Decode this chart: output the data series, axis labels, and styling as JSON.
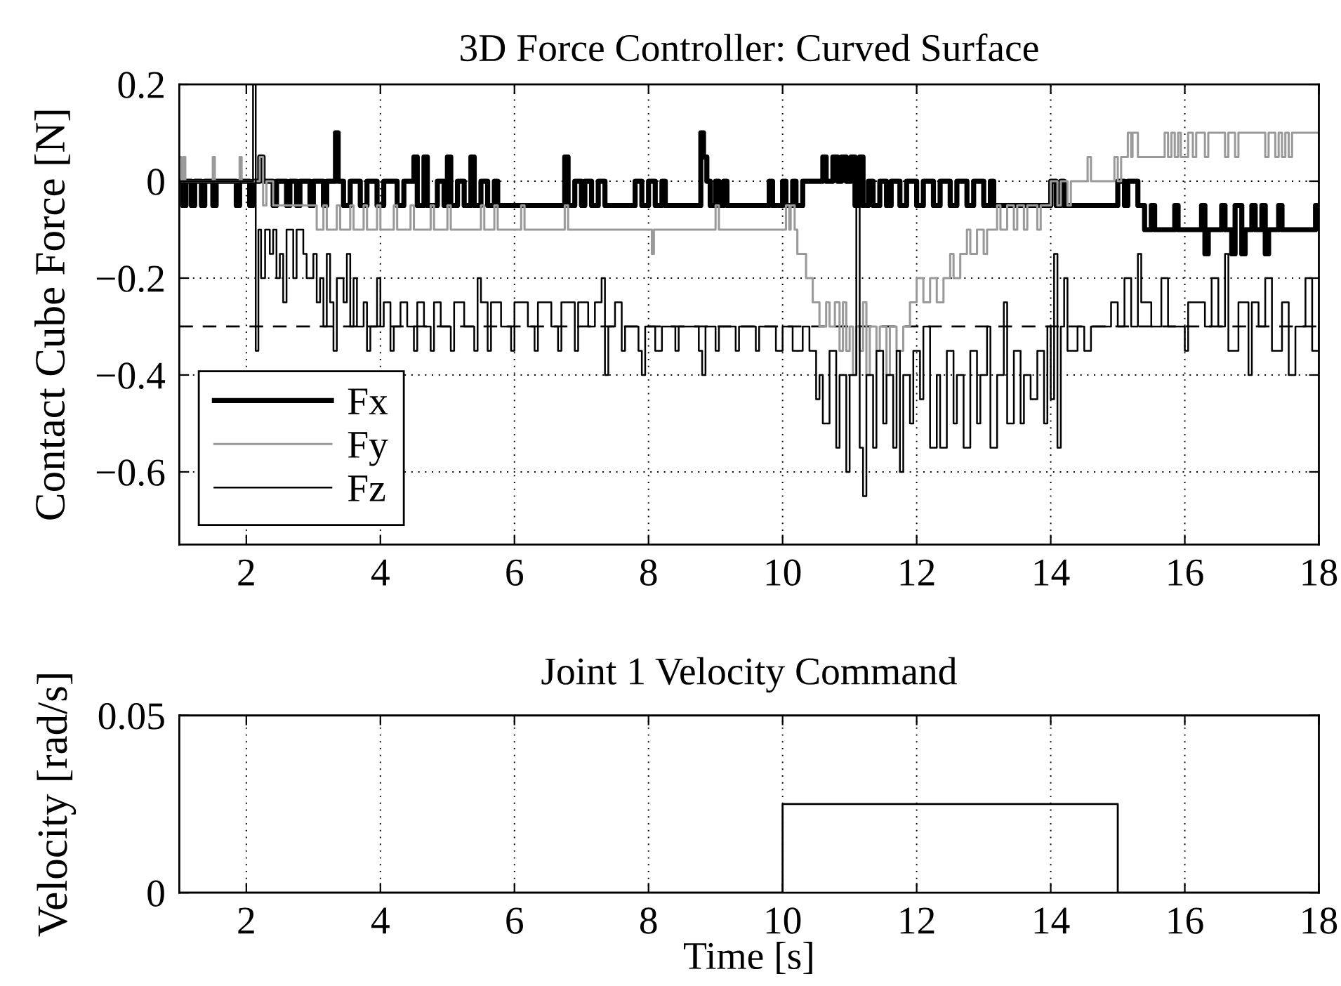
{
  "chart_data": [
    {
      "type": "step",
      "title": "3D Force Controller: Curved Surface",
      "ylabel": "Contact Cube Force [N]",
      "xlim": [
        1,
        18
      ],
      "xticks": [
        2,
        4,
        6,
        8,
        10,
        12,
        14,
        16,
        18
      ],
      "ylim": [
        -0.75,
        0.2
      ],
      "yticks": [
        0.2,
        0,
        {
          "value": -0.2,
          "label": "−0.2"
        },
        {
          "value": -0.4,
          "label": "−0.4"
        },
        {
          "value": -0.6,
          "label": "−0.6"
        }
      ],
      "grid": true,
      "legend": "bottom left",
      "ref_lines": [
        {
          "axis": "y",
          "value": -0.3,
          "color": "#000000",
          "line_style": "dashed"
        }
      ],
      "series": [
        {
          "name": "Fx",
          "color": "#000000",
          "x": [
            1.0,
            1.05,
            1.1,
            1.18,
            1.23,
            1.33,
            1.38,
            1.5,
            1.55,
            1.85,
            1.9,
            2.05,
            2.1,
            2.2,
            2.25,
            2.4,
            2.45,
            2.6,
            2.65,
            2.75,
            2.8,
            2.95,
            3.0,
            3.15,
            3.2,
            3.33,
            3.37,
            3.45,
            3.55,
            3.7,
            3.8,
            3.95,
            4.05,
            4.25,
            4.35,
            4.5,
            4.55,
            4.65,
            4.7,
            4.85,
            4.95,
            5.0,
            5.05,
            5.15,
            5.25,
            5.35,
            5.4,
            5.5,
            5.6,
            5.7,
            5.75,
            6.75,
            6.8,
            6.9,
            7.0,
            7.05,
            7.15,
            7.25,
            7.35,
            7.8,
            7.9,
            8.0,
            8.1,
            8.2,
            8.25,
            8.78,
            8.82,
            8.87,
            8.92,
            9.0,
            9.05,
            9.12,
            9.17,
            9.8,
            9.85,
            10.0,
            10.05,
            10.15,
            10.2,
            10.3,
            10.6,
            10.65,
            10.75,
            10.82,
            10.88,
            10.95,
            11.02,
            11.08,
            11.15,
            11.2,
            11.28,
            11.35,
            11.45,
            11.55,
            11.62,
            11.75,
            11.85,
            12.0,
            12.1,
            12.25,
            12.35,
            12.5,
            12.6,
            12.75,
            12.85,
            13.0,
            13.1,
            13.15,
            14.0,
            14.08,
            14.15,
            14.2,
            15.0,
            15.1,
            15.15,
            15.3,
            15.4,
            15.5,
            15.55,
            15.85,
            15.9,
            16.25,
            16.3,
            16.35,
            16.55,
            16.6,
            16.7,
            16.75,
            16.85,
            16.9,
            17.0,
            17.05,
            17.15,
            17.2,
            17.25,
            17.4,
            17.45,
            17.95,
            18.0
          ],
          "values": [
            0,
            -0.05,
            0,
            -0.05,
            0,
            -0.05,
            0,
            -0.05,
            0,
            -0.05,
            0,
            -0.05,
            0,
            0.05,
            0,
            -0.05,
            0,
            -0.05,
            0,
            -0.05,
            0,
            -0.05,
            0,
            -0.05,
            0,
            0.1,
            0,
            -0.05,
            0,
            -0.05,
            0,
            -0.05,
            0,
            -0.05,
            0,
            0.05,
            -0.05,
            0.05,
            -0.05,
            0,
            -0.05,
            0.05,
            -0.05,
            0,
            -0.05,
            0.05,
            -0.05,
            0,
            -0.05,
            0,
            -0.05,
            0.05,
            -0.05,
            0,
            -0.05,
            0,
            -0.05,
            0,
            -0.05,
            0,
            -0.05,
            0,
            -0.05,
            0,
            -0.05,
            0.1,
            0.05,
            0,
            -0.05,
            0,
            -0.05,
            0,
            -0.05,
            0,
            -0.05,
            0,
            -0.05,
            0,
            -0.05,
            0,
            0.05,
            0,
            0.05,
            0,
            0.05,
            0,
            0.05,
            -0.05,
            0.05,
            -0.05,
            0,
            -0.05,
            0,
            -0.05,
            0,
            -0.05,
            0,
            -0.05,
            0,
            -0.05,
            0,
            -0.05,
            0,
            -0.05,
            0,
            -0.05,
            0,
            -0.05,
            0,
            -0.05,
            0,
            -0.05,
            0,
            -0.05,
            0,
            -0.05,
            -0.1,
            -0.05,
            -0.1,
            -0.05,
            -0.1,
            -0.05,
            -0.15,
            -0.1,
            -0.05,
            -0.1,
            -0.15,
            -0.05,
            -0.15,
            -0.1,
            -0.05,
            -0.1,
            -0.05,
            -0.15,
            -0.1,
            -0.05,
            -0.1,
            -0.05,
            -0.1
          ]
        },
        {
          "name": "Fy",
          "color": "#9a9a9a",
          "x": [
            1.0,
            1.03,
            1.06,
            1.09,
            1.5,
            1.53,
            1.9,
            1.93,
            2.2,
            2.25,
            2.3,
            2.4,
            3.05,
            3.15,
            3.2,
            3.35,
            3.4,
            3.55,
            3.6,
            3.75,
            3.8,
            3.95,
            4.0,
            4.2,
            4.25,
            4.45,
            4.5,
            4.75,
            4.8,
            5.0,
            5.05,
            5.5,
            5.55,
            5.7,
            5.75,
            6.1,
            6.15,
            6.75,
            6.8,
            8.05,
            8.08,
            9.0,
            9.05,
            10.05,
            10.1,
            10.12,
            10.18,
            10.22,
            10.35,
            10.45,
            10.55,
            10.65,
            10.7,
            10.78,
            10.85,
            10.9,
            10.95,
            11.0,
            11.05,
            11.1,
            11.15,
            11.2,
            11.25,
            11.3,
            11.4,
            11.45,
            11.55,
            11.6,
            11.7,
            11.8,
            11.9,
            12.0,
            12.1,
            12.2,
            12.3,
            12.4,
            12.5,
            12.55,
            12.65,
            12.75,
            12.8,
            12.9,
            13.0,
            13.05,
            13.2,
            13.25,
            13.35,
            13.45,
            13.5,
            13.6,
            13.65,
            13.8,
            13.85,
            14.0,
            14.1,
            14.15,
            14.25,
            14.3,
            14.55,
            14.6,
            14.95,
            15.0,
            15.05,
            15.15,
            15.2,
            15.22,
            15.3,
            15.7,
            15.75,
            15.8,
            15.85,
            15.9,
            15.94,
            16.05,
            16.12,
            16.17,
            16.3,
            16.35,
            16.6,
            16.65,
            16.75,
            16.8,
            17.2,
            17.25,
            17.35,
            17.4,
            17.45,
            17.5,
            17.55,
            17.6,
            18.0
          ],
          "values": [
            0.05,
            0,
            0.05,
            0,
            0.05,
            0,
            0.05,
            0,
            0.05,
            -0.05,
            0,
            -0.05,
            -0.1,
            -0.05,
            -0.1,
            -0.05,
            -0.1,
            -0.05,
            -0.1,
            -0.05,
            -0.1,
            -0.05,
            -0.1,
            -0.05,
            -0.1,
            -0.05,
            -0.1,
            -0.05,
            -0.1,
            -0.05,
            -0.1,
            -0.05,
            -0.1,
            -0.05,
            -0.1,
            -0.05,
            -0.1,
            -0.05,
            -0.1,
            -0.15,
            -0.1,
            -0.05,
            -0.1,
            -0.05,
            -0.1,
            -0.05,
            -0.1,
            -0.15,
            -0.2,
            -0.25,
            -0.3,
            -0.25,
            -0.3,
            -0.25,
            -0.35,
            -0.25,
            -0.35,
            -0.3,
            -0.4,
            -0.3,
            -0.35,
            -0.25,
            -0.4,
            -0.3,
            -0.35,
            -0.3,
            -0.4,
            -0.3,
            -0.35,
            -0.3,
            -0.25,
            -0.2,
            -0.25,
            -0.2,
            -0.25,
            -0.2,
            -0.15,
            -0.2,
            -0.15,
            -0.1,
            -0.15,
            -0.1,
            -0.15,
            -0.1,
            -0.05,
            -0.1,
            -0.05,
            -0.1,
            -0.05,
            -0.1,
            -0.05,
            -0.1,
            -0.05,
            0,
            -0.05,
            0,
            -0.05,
            0,
            0.05,
            0,
            0.05,
            0,
            0.05,
            0.1,
            0.05,
            0.1,
            0.05,
            0.1,
            0.05,
            0.1,
            0.05,
            0.1,
            0.05,
            0.1,
            0.05,
            0.1,
            0.05,
            0.1,
            0.05,
            0.1,
            0.05,
            0.1,
            0.05,
            0.1,
            0.05,
            0.1,
            0.05,
            0.1,
            0.05,
            0.1,
            0.1
          ]
        },
        {
          "name": "Fz",
          "color": "#000000",
          "x": [
            1.0,
            2.1,
            2.14,
            2.18,
            2.22,
            2.28,
            2.35,
            2.4,
            2.45,
            2.5,
            2.55,
            2.6,
            2.7,
            2.75,
            2.85,
            2.9,
            3.0,
            3.05,
            3.1,
            3.15,
            3.2,
            3.25,
            3.3,
            3.35,
            3.45,
            3.5,
            3.55,
            3.6,
            3.65,
            3.75,
            3.8,
            3.85,
            3.95,
            4.0,
            4.05,
            4.15,
            4.2,
            4.3,
            4.4,
            4.5,
            4.55,
            4.65,
            4.75,
            4.8,
            4.9,
            5.05,
            5.1,
            5.25,
            5.4,
            5.45,
            5.5,
            5.6,
            5.65,
            5.8,
            5.95,
            6.0,
            6.2,
            6.3,
            6.35,
            6.55,
            6.65,
            6.7,
            6.9,
            6.95,
            7.1,
            7.2,
            7.3,
            7.35,
            7.4,
            7.5,
            7.6,
            7.65,
            7.85,
            7.9,
            7.95,
            8.1,
            8.2,
            8.4,
            8.45,
            8.75,
            8.8,
            8.85,
            9.0,
            9.05,
            9.3,
            9.35,
            9.6,
            9.65,
            9.9,
            10.0,
            10.15,
            10.3,
            10.4,
            10.5,
            10.55,
            10.6,
            10.7,
            10.8,
            10.85,
            10.95,
            11.0,
            11.1,
            11.15,
            11.2,
            11.25,
            11.35,
            11.4,
            11.5,
            11.55,
            11.65,
            11.7,
            11.75,
            11.8,
            11.9,
            11.95,
            12.05,
            12.1,
            12.2,
            12.3,
            12.35,
            12.45,
            12.55,
            12.6,
            12.7,
            12.8,
            12.9,
            12.95,
            13.05,
            13.1,
            13.2,
            13.3,
            13.35,
            13.45,
            13.55,
            13.6,
            13.7,
            13.8,
            13.9,
            13.95,
            14.0,
            14.05,
            14.1,
            14.15,
            14.2,
            14.25,
            14.4,
            14.5,
            14.6,
            14.9,
            15.0,
            15.1,
            15.2,
            15.3,
            15.35,
            15.5,
            15.65,
            15.75,
            16.0,
            16.05,
            16.3,
            16.4,
            16.5,
            16.6,
            16.65,
            16.8,
            16.95,
            17.0,
            17.1,
            17.2,
            17.3,
            17.45,
            17.55,
            17.65,
            17.8,
            17.9,
            18.0
          ],
          "values": [
            0,
            0.2,
            -0.35,
            -0.1,
            -0.2,
            -0.1,
            -0.15,
            -0.1,
            -0.2,
            -0.15,
            -0.25,
            -0.1,
            -0.2,
            -0.1,
            -0.15,
            -0.2,
            -0.15,
            -0.25,
            -0.2,
            -0.3,
            -0.15,
            -0.25,
            -0.35,
            -0.2,
            -0.25,
            -0.15,
            -0.3,
            -0.2,
            -0.3,
            -0.25,
            -0.35,
            -0.3,
            -0.2,
            -0.3,
            -0.25,
            -0.35,
            -0.3,
            -0.25,
            -0.3,
            -0.35,
            -0.25,
            -0.3,
            -0.35,
            -0.25,
            -0.3,
            -0.35,
            -0.25,
            -0.3,
            -0.35,
            -0.2,
            -0.25,
            -0.35,
            -0.25,
            -0.3,
            -0.35,
            -0.25,
            -0.3,
            -0.35,
            -0.25,
            -0.3,
            -0.35,
            -0.25,
            -0.35,
            -0.25,
            -0.3,
            -0.25,
            -0.2,
            -0.4,
            -0.3,
            -0.25,
            -0.35,
            -0.3,
            -0.35,
            -0.4,
            -0.3,
            -0.35,
            -0.3,
            -0.35,
            -0.3,
            -0.35,
            -0.4,
            -0.3,
            -0.35,
            -0.3,
            -0.35,
            -0.3,
            -0.35,
            -0.3,
            -0.35,
            -0.3,
            -0.35,
            -0.3,
            -0.35,
            -0.45,
            -0.4,
            -0.5,
            -0.35,
            -0.55,
            -0.4,
            -0.6,
            -0.4,
            -0.05,
            -0.55,
            -0.65,
            -0.4,
            -0.55,
            -0.35,
            -0.5,
            -0.4,
            -0.55,
            -0.35,
            -0.6,
            -0.4,
            -0.5,
            -0.35,
            -0.45,
            -0.3,
            -0.55,
            -0.4,
            -0.55,
            -0.35,
            -0.5,
            -0.4,
            -0.55,
            -0.35,
            -0.5,
            -0.4,
            -0.3,
            -0.55,
            -0.4,
            -0.25,
            -0.5,
            -0.35,
            -0.5,
            -0.4,
            -0.45,
            -0.35,
            -0.5,
            -0.3,
            -0.45,
            -0.15,
            -0.55,
            -0.3,
            -0.2,
            -0.35,
            -0.3,
            -0.35,
            -0.3,
            -0.25,
            -0.3,
            -0.2,
            -0.3,
            -0.15,
            -0.25,
            -0.3,
            -0.2,
            -0.3,
            -0.35,
            -0.25,
            -0.3,
            -0.2,
            -0.3,
            -0.15,
            -0.35,
            -0.25,
            -0.4,
            -0.25,
            -0.3,
            -0.2,
            -0.35,
            -0.25,
            -0.4,
            -0.3,
            -0.2,
            -0.35,
            -0.3
          ]
        }
      ]
    },
    {
      "type": "step",
      "title": "Joint 1 Velocity Command",
      "xlabel": "Time [s]",
      "ylabel": "Velocity [rad/s]",
      "xlim": [
        1,
        18
      ],
      "xticks": [
        2,
        4,
        6,
        8,
        10,
        12,
        14,
        16,
        18
      ],
      "ylim": [
        0,
        0.05
      ],
      "yticks": [
        0,
        0.05
      ],
      "grid": true,
      "series": [
        {
          "color": "#000000",
          "x": [
            1,
            10,
            15,
            18
          ],
          "values": [
            0,
            0.025,
            0,
            0
          ]
        }
      ]
    }
  ]
}
